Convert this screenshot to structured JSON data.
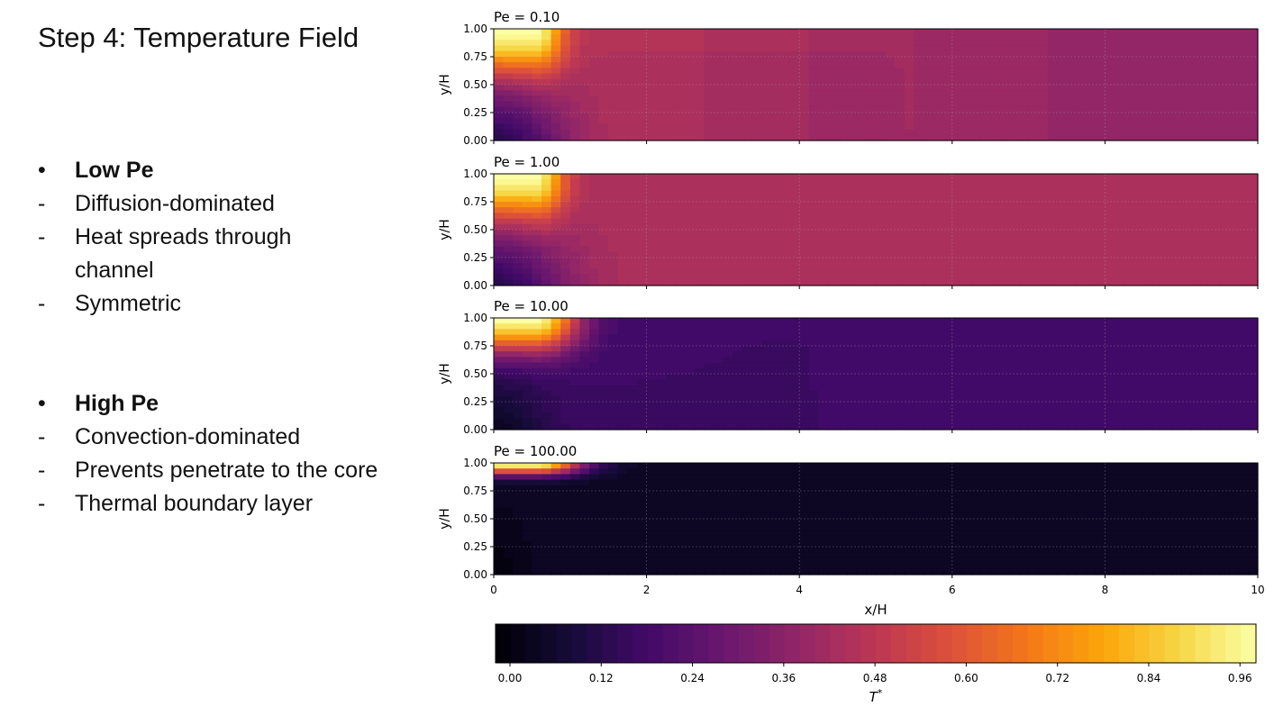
{
  "slide": {
    "title": "Step 4: Temperature Field",
    "groups": [
      {
        "heading": "Low Pe",
        "points": [
          "Diffusion-dominated",
          "Heat spreads through channel",
          "Symmetric"
        ]
      },
      {
        "heading": "High Pe",
        "points": [
          "Convection-dominated",
          "Prevents penetrate to the core",
          "Thermal boundary layer"
        ]
      }
    ],
    "bullet_glyph": "•",
    "dash_glyph": "-"
  },
  "chart_data": {
    "type": "heatmap",
    "colormap": "inferno",
    "xlabel": "x/H",
    "ylabel": "y/H",
    "xlim": [
      0,
      10
    ],
    "ylim": [
      0,
      1
    ],
    "xticks": [
      0,
      2,
      4,
      6,
      8,
      10
    ],
    "yticks": [
      0.0,
      0.25,
      0.5,
      0.75,
      1.0
    ],
    "grid": true,
    "panels": [
      {
        "title": "Pe = 0.10",
        "pe": 0.1,
        "hot_spot": {
          "x": [
            0,
            0.6
          ],
          "y": 1.0
        },
        "far_field_bands": [
          {
            "x": [
              1.0,
              2.8
            ],
            "T": 0.47
          },
          {
            "x": [
              2.8,
              4.1
            ],
            "T": 0.45
          },
          {
            "x": [
              4.1,
              5.5
            ],
            "T": 0.43
          },
          {
            "x": [
              5.5,
              7.2
            ],
            "T": 0.415
          },
          {
            "x": [
              7.2,
              10
            ],
            "T": 0.4
          }
        ]
      },
      {
        "title": "Pe = 1.00",
        "pe": 1.0,
        "hot_spot": {
          "x": [
            0,
            0.6
          ],
          "y": 1.0
        },
        "far_field_bands": [
          {
            "x": [
              1.0,
              8.5
            ],
            "T": 0.46
          },
          {
            "x": [
              8.5,
              10
            ],
            "T": 0.45
          }
        ]
      },
      {
        "title": "Pe = 10.00",
        "pe": 10.0,
        "hot_spot": {
          "x": [
            0,
            0.6
          ],
          "y": 1.0
        },
        "far_field_bands": [
          {
            "x": [
              2.0,
              10
            ],
            "T": 0.19
          }
        ]
      },
      {
        "title": "Pe = 100.00",
        "pe": 100.0,
        "hot_spot": {
          "x": [
            0,
            0.6
          ],
          "y": 1.0
        },
        "far_field_bands": [
          {
            "x": [
              1.0,
              10
            ],
            "T": 0.06
          }
        ]
      }
    ],
    "colorbar": {
      "label": "T*",
      "range": [
        0,
        1
      ],
      "levels": 50,
      "ticks": [
        0.0,
        0.12,
        0.24,
        0.36,
        0.48,
        0.6,
        0.72,
        0.84,
        0.96
      ],
      "tick_labels": [
        "0.00",
        "0.12",
        "0.24",
        "0.36",
        "0.48",
        "0.60",
        "0.72",
        "0.84",
        "0.96"
      ]
    }
  }
}
